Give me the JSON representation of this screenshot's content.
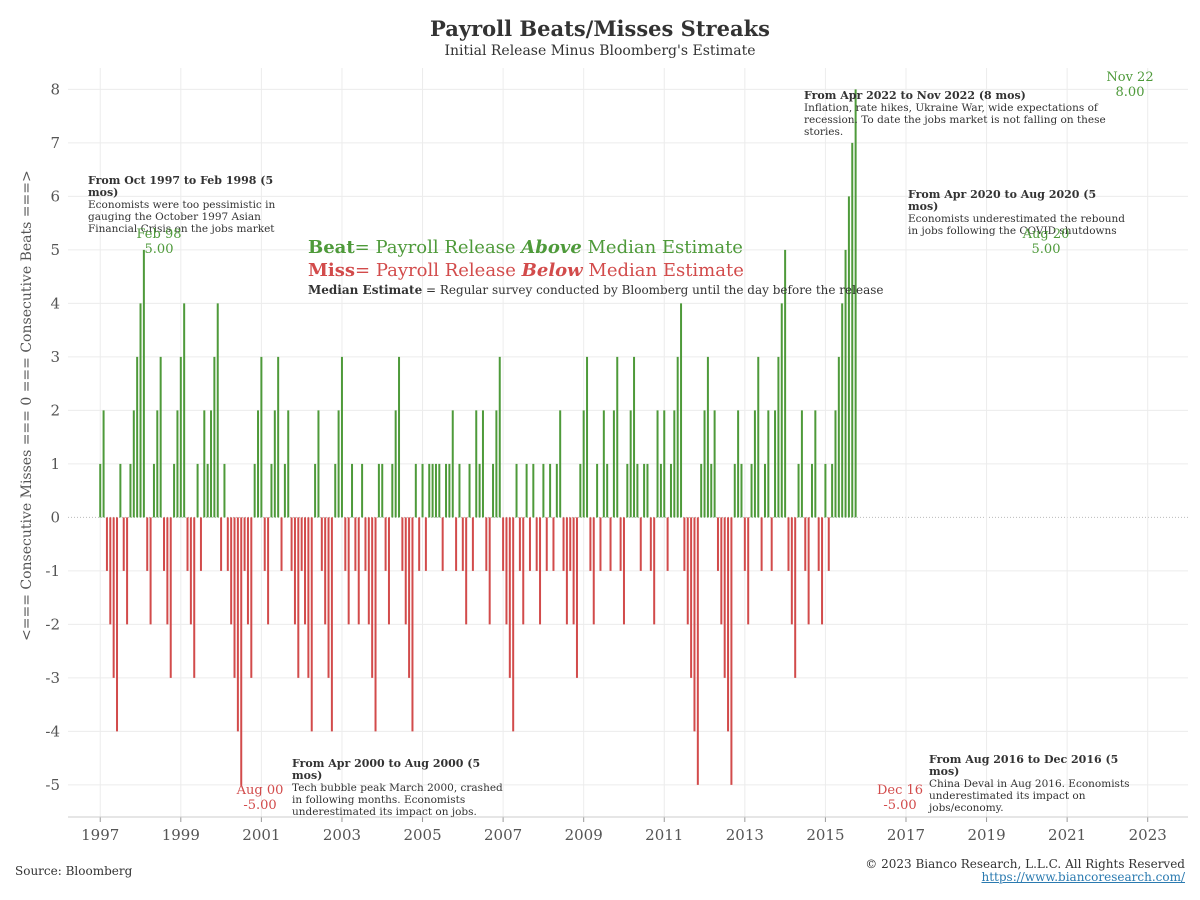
{
  "title": "Payroll Beats/Misses Streaks",
  "subtitle": "Initial Release Minus Bloomberg's Estimate",
  "y_axis_label": "<=== Consecutive Misses === 0 === Consecutive Beats ===>",
  "source": "Source: Bloomberg",
  "copyright": "© 2023 Bianco Research, L.L.C. All Rights Reserved",
  "url": "https://www.biancoresearch.com/",
  "legend": {
    "beat_word": "Beat",
    "beat_text_a": "= Payroll Release ",
    "beat_emph": "Above",
    "beat_text_b": " Median Estimate",
    "miss_word": "Miss",
    "miss_text_a": "= Payroll Release ",
    "miss_emph": "Below",
    "miss_text_b": " Median Estimate",
    "median_word": "Median Estimate",
    "median_text": " = Regular survey conducted by Bloomberg until the day before the release"
  },
  "annotations": [
    {
      "heading": "From Oct 1997 to Feb 1998 (5 mos)",
      "body": "Economists were too pessimistic in gauging the October 1997 Asian Financial Crisis on the jobs market"
    },
    {
      "heading": "From Apr 2000 to Aug 2000 (5 mos)",
      "body": "Tech bubble peak March 2000, crashed in following months. Economists underestimated its impact on jobs."
    },
    {
      "heading": "From Aug 2016 to Dec 2016 (5 mos)",
      "body": "China Deval in Aug 2016. Economists underestimated its impact on jobs/economy."
    },
    {
      "heading": "From Apr 2020 to Aug 2020 (5 mos)",
      "body": "Economists underestimated the rebound in jobs following the COVID shutdowns"
    },
    {
      "heading": "From Apr 2022 to Nov 2022 (8 mos)",
      "body": "Inflation, rate hikes, Ukraine War, wide expectations of recession. To date the jobs market is not falling on these stories."
    }
  ],
  "peak_labels": [
    {
      "date": "Feb 98",
      "value": "5.00"
    },
    {
      "date": "Aug 00",
      "value": "-5.00"
    },
    {
      "date": "Dec 16",
      "value": "-5.00"
    },
    {
      "date": "Aug 20",
      "value": "5.00"
    },
    {
      "date": "Nov 22",
      "value": "8.00"
    }
  ],
  "colors": {
    "beat": "#4e9a3a",
    "miss": "#d24b4b",
    "grid": "#ececec",
    "axis_text": "#555555"
  },
  "chart_data": {
    "type": "bar",
    "title": "Payroll Beats/Misses Streaks",
    "subtitle": "Initial Release Minus Bloomberg's Estimate",
    "ylabel": "<=== Consecutive Misses === 0 === Consecutive Beats ===>",
    "ylim": [
      -5.6,
      8.4
    ],
    "yticks": [
      -5,
      -4,
      -3,
      -2,
      -1,
      0,
      1,
      2,
      3,
      4,
      5,
      6,
      7,
      8
    ],
    "xlim": [
      1996.2,
      2024.0
    ],
    "xticks": [
      "1997",
      "1999",
      "2001",
      "2003",
      "2005",
      "2007",
      "2009",
      "2011",
      "2013",
      "2015",
      "2017",
      "2019",
      "2021",
      "2023"
    ],
    "grid": true,
    "legend": "none",
    "start_date": "1997-01",
    "series": [
      {
        "frequency": "monthly",
        "values": [
          1,
          2,
          -1,
          -2,
          -3,
          -4,
          1,
          -1,
          -2,
          1,
          2,
          3,
          4,
          5,
          -1,
          -2,
          1,
          2,
          3,
          -1,
          -2,
          -3,
          1,
          2,
          3,
          4,
          -1,
          -2,
          -3,
          1,
          -1,
          2,
          1,
          2,
          3,
          4,
          -1,
          1,
          -1,
          -2,
          -3,
          -4,
          -5,
          -1,
          -2,
          -3,
          1,
          2,
          3,
          -1,
          -2,
          1,
          2,
          3,
          -1,
          1,
          2,
          -1,
          -2,
          -3,
          -1,
          -2,
          -3,
          -4,
          1,
          2,
          -1,
          -2,
          -3,
          -4,
          1,
          2,
          3,
          -1,
          -2,
          1,
          -1,
          -2,
          1,
          -1,
          -2,
          -3,
          -4,
          1,
          1,
          -1,
          -2,
          1,
          2,
          3,
          -1,
          -2,
          -3,
          -4,
          1,
          -1,
          1,
          -1,
          1,
          1,
          1,
          1,
          -1,
          1,
          1,
          2,
          -1,
          1,
          -1,
          -2,
          1,
          -1,
          2,
          1,
          2,
          -1,
          -2,
          1,
          2,
          3,
          -1,
          -2,
          -3,
          -4,
          1,
          -1,
          -2,
          1,
          -1,
          1,
          -1,
          -2,
          1,
          -1,
          1,
          -1,
          1,
          2,
          -1,
          -2,
          -1,
          -2,
          -3,
          1,
          2,
          3,
          -1,
          -2,
          1,
          -1,
          2,
          1,
          -1,
          2,
          3,
          -1,
          -2,
          1,
          2,
          3,
          1,
          -1,
          1,
          1,
          -1,
          -2,
          2,
          1,
          2,
          -1,
          1,
          2,
          3,
          4,
          -1,
          -2,
          -3,
          -4,
          -5,
          1,
          2,
          3,
          1,
          2,
          -1,
          -2,
          -3,
          -4,
          -5,
          1,
          2,
          1,
          -1,
          -2,
          1,
          2,
          3,
          -1,
          1,
          2,
          -1,
          2,
          3,
          4,
          5,
          -1,
          -2,
          -3,
          1,
          2,
          -1,
          -2,
          1,
          2,
          -1,
          -2,
          1,
          -1,
          1,
          2,
          3,
          4,
          5,
          6,
          7,
          8
        ]
      }
    ]
  }
}
